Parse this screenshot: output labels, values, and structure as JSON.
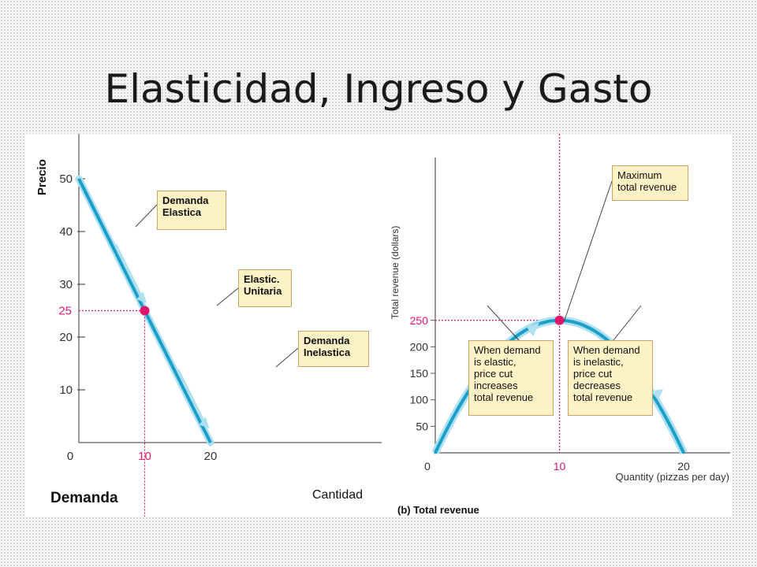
{
  "title": "Elasticidad, Ingreso y Gasto",
  "colors": {
    "curve": "#1a9fc9",
    "curve_halo": "#aee0f0",
    "highlight": "#e0156e",
    "callout_bg": "#fdf1c6",
    "callout_border": "#c8a56a"
  },
  "chart_data": [
    {
      "type": "line",
      "ylabel": "Precio",
      "xlabel": "Cantidad",
      "caption": "Demanda",
      "x": [
        0,
        20
      ],
      "y": [
        50,
        0
      ],
      "xlim": [
        0,
        20
      ],
      "ylim": [
        0,
        50
      ],
      "x_ticks": [
        "0",
        "10",
        "20"
      ],
      "y_ticks": [
        "10",
        "20",
        "30",
        "40",
        "50"
      ],
      "highlight_point": {
        "x": 10,
        "y": 25,
        "x_label": "10",
        "y_label": "25"
      },
      "annotations": [
        {
          "lines": [
            "Demanda",
            "Elastica"
          ],
          "x": 5,
          "y": 37.5
        },
        {
          "lines": [
            "Elastic.",
            "Unitaria"
          ],
          "x": 10,
          "y": 25
        },
        {
          "lines": [
            "Demanda",
            "Inelastica"
          ],
          "x": 15,
          "y": 12.5
        }
      ]
    },
    {
      "type": "line",
      "ylabel": "Total revenue (dollars)",
      "xlabel": "Quantity (pizzas per day)",
      "caption": "(b) Total revenue",
      "x": [
        0,
        2,
        4,
        6,
        8,
        10,
        12,
        14,
        16,
        18,
        20
      ],
      "y": [
        0,
        90,
        160,
        210,
        240,
        250,
        240,
        210,
        160,
        90,
        0
      ],
      "xlim": [
        0,
        22.5
      ],
      "ylim": [
        0,
        270
      ],
      "x_ticks": [
        "0",
        "10",
        "20"
      ],
      "y_ticks": [
        "50",
        "100",
        "150",
        "200",
        "250"
      ],
      "highlight_point": {
        "x": 10,
        "y": 250,
        "x_label": "10",
        "y_label": "250"
      },
      "annotations": [
        {
          "lines": [
            "Maximum",
            "total revenue"
          ],
          "x": 10,
          "y": 250
        },
        {
          "lines": [
            "When demand",
            "is elastic,",
            "price cut",
            "increases",
            "total revenue"
          ],
          "x": 5,
          "y": 187.5
        },
        {
          "lines": [
            "When demand",
            "is inelastic,",
            "price cut",
            "decreases",
            "total revenue"
          ],
          "x": 15,
          "y": 187.5
        }
      ]
    }
  ]
}
